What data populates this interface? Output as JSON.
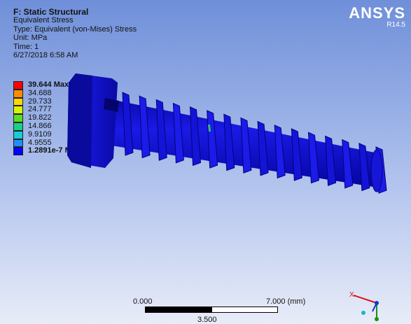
{
  "header": {
    "title": "F: Static Structural",
    "result_name": "Equivalent Stress",
    "type_line": "Type: Equivalent (von-Mises) Stress",
    "unit_line": "Unit: MPa",
    "time_line": "Time: 1",
    "timestamp": "6/27/2018 6:58 AM"
  },
  "brand": {
    "name": "ANSYS",
    "version": "R14.5"
  },
  "legend": {
    "entries": [
      {
        "label": "39.644 Max",
        "color": "#ff0000",
        "bold": true
      },
      {
        "label": "34.688",
        "color": "#ff8c00",
        "bold": false
      },
      {
        "label": "29.733",
        "color": "#ffd700",
        "bold": false
      },
      {
        "label": "24.777",
        "color": "#d6f500",
        "bold": false
      },
      {
        "label": "19.822",
        "color": "#5cdc1e",
        "bold": false
      },
      {
        "label": "14.866",
        "color": "#18d28a",
        "bold": false
      },
      {
        "label": "9.9109",
        "color": "#16cdd8",
        "bold": false
      },
      {
        "label": "4.9555",
        "color": "#1e8fff",
        "bold": false
      },
      {
        "label": "1.2891e-7 Min",
        "color": "#0000ff",
        "bold": true
      }
    ]
  },
  "scale": {
    "left": "0.000",
    "right": "7.000 (mm)",
    "mid": "3.500"
  },
  "triad": {
    "x_label": "X"
  },
  "colors": {
    "model": "#1212d8",
    "model_dark": "#05058a"
  }
}
